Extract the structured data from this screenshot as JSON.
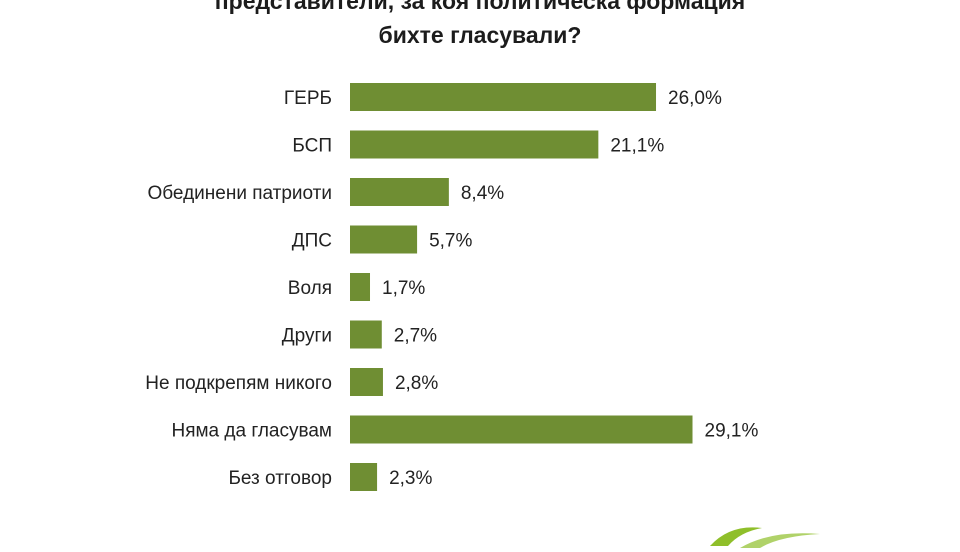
{
  "title": {
    "line1": "представители, за коя политическа формация",
    "line2": "бихте гласували?"
  },
  "colors": {
    "bar": "#6f8e33",
    "text": "#222222",
    "logo": "#8fbf2a"
  },
  "chart_data": {
    "type": "bar",
    "orientation": "horizontal",
    "categories": [
      "ГЕРБ",
      "БСП",
      "Обединени патриоти",
      "ДПС",
      "Воля",
      "Други",
      "Не подкрепям никого",
      "Няма да гласувам",
      "Без отговор"
    ],
    "values": [
      26.0,
      21.1,
      8.4,
      5.7,
      1.7,
      2.7,
      2.8,
      29.1,
      2.3
    ],
    "value_labels": [
      "26,0%",
      "21,1%",
      "8,4%",
      "5,7%",
      "1,7%",
      "2,7%",
      "2,8%",
      "29,1%",
      "2,3%"
    ],
    "unit": "%",
    "grid": false,
    "legend": "none"
  }
}
